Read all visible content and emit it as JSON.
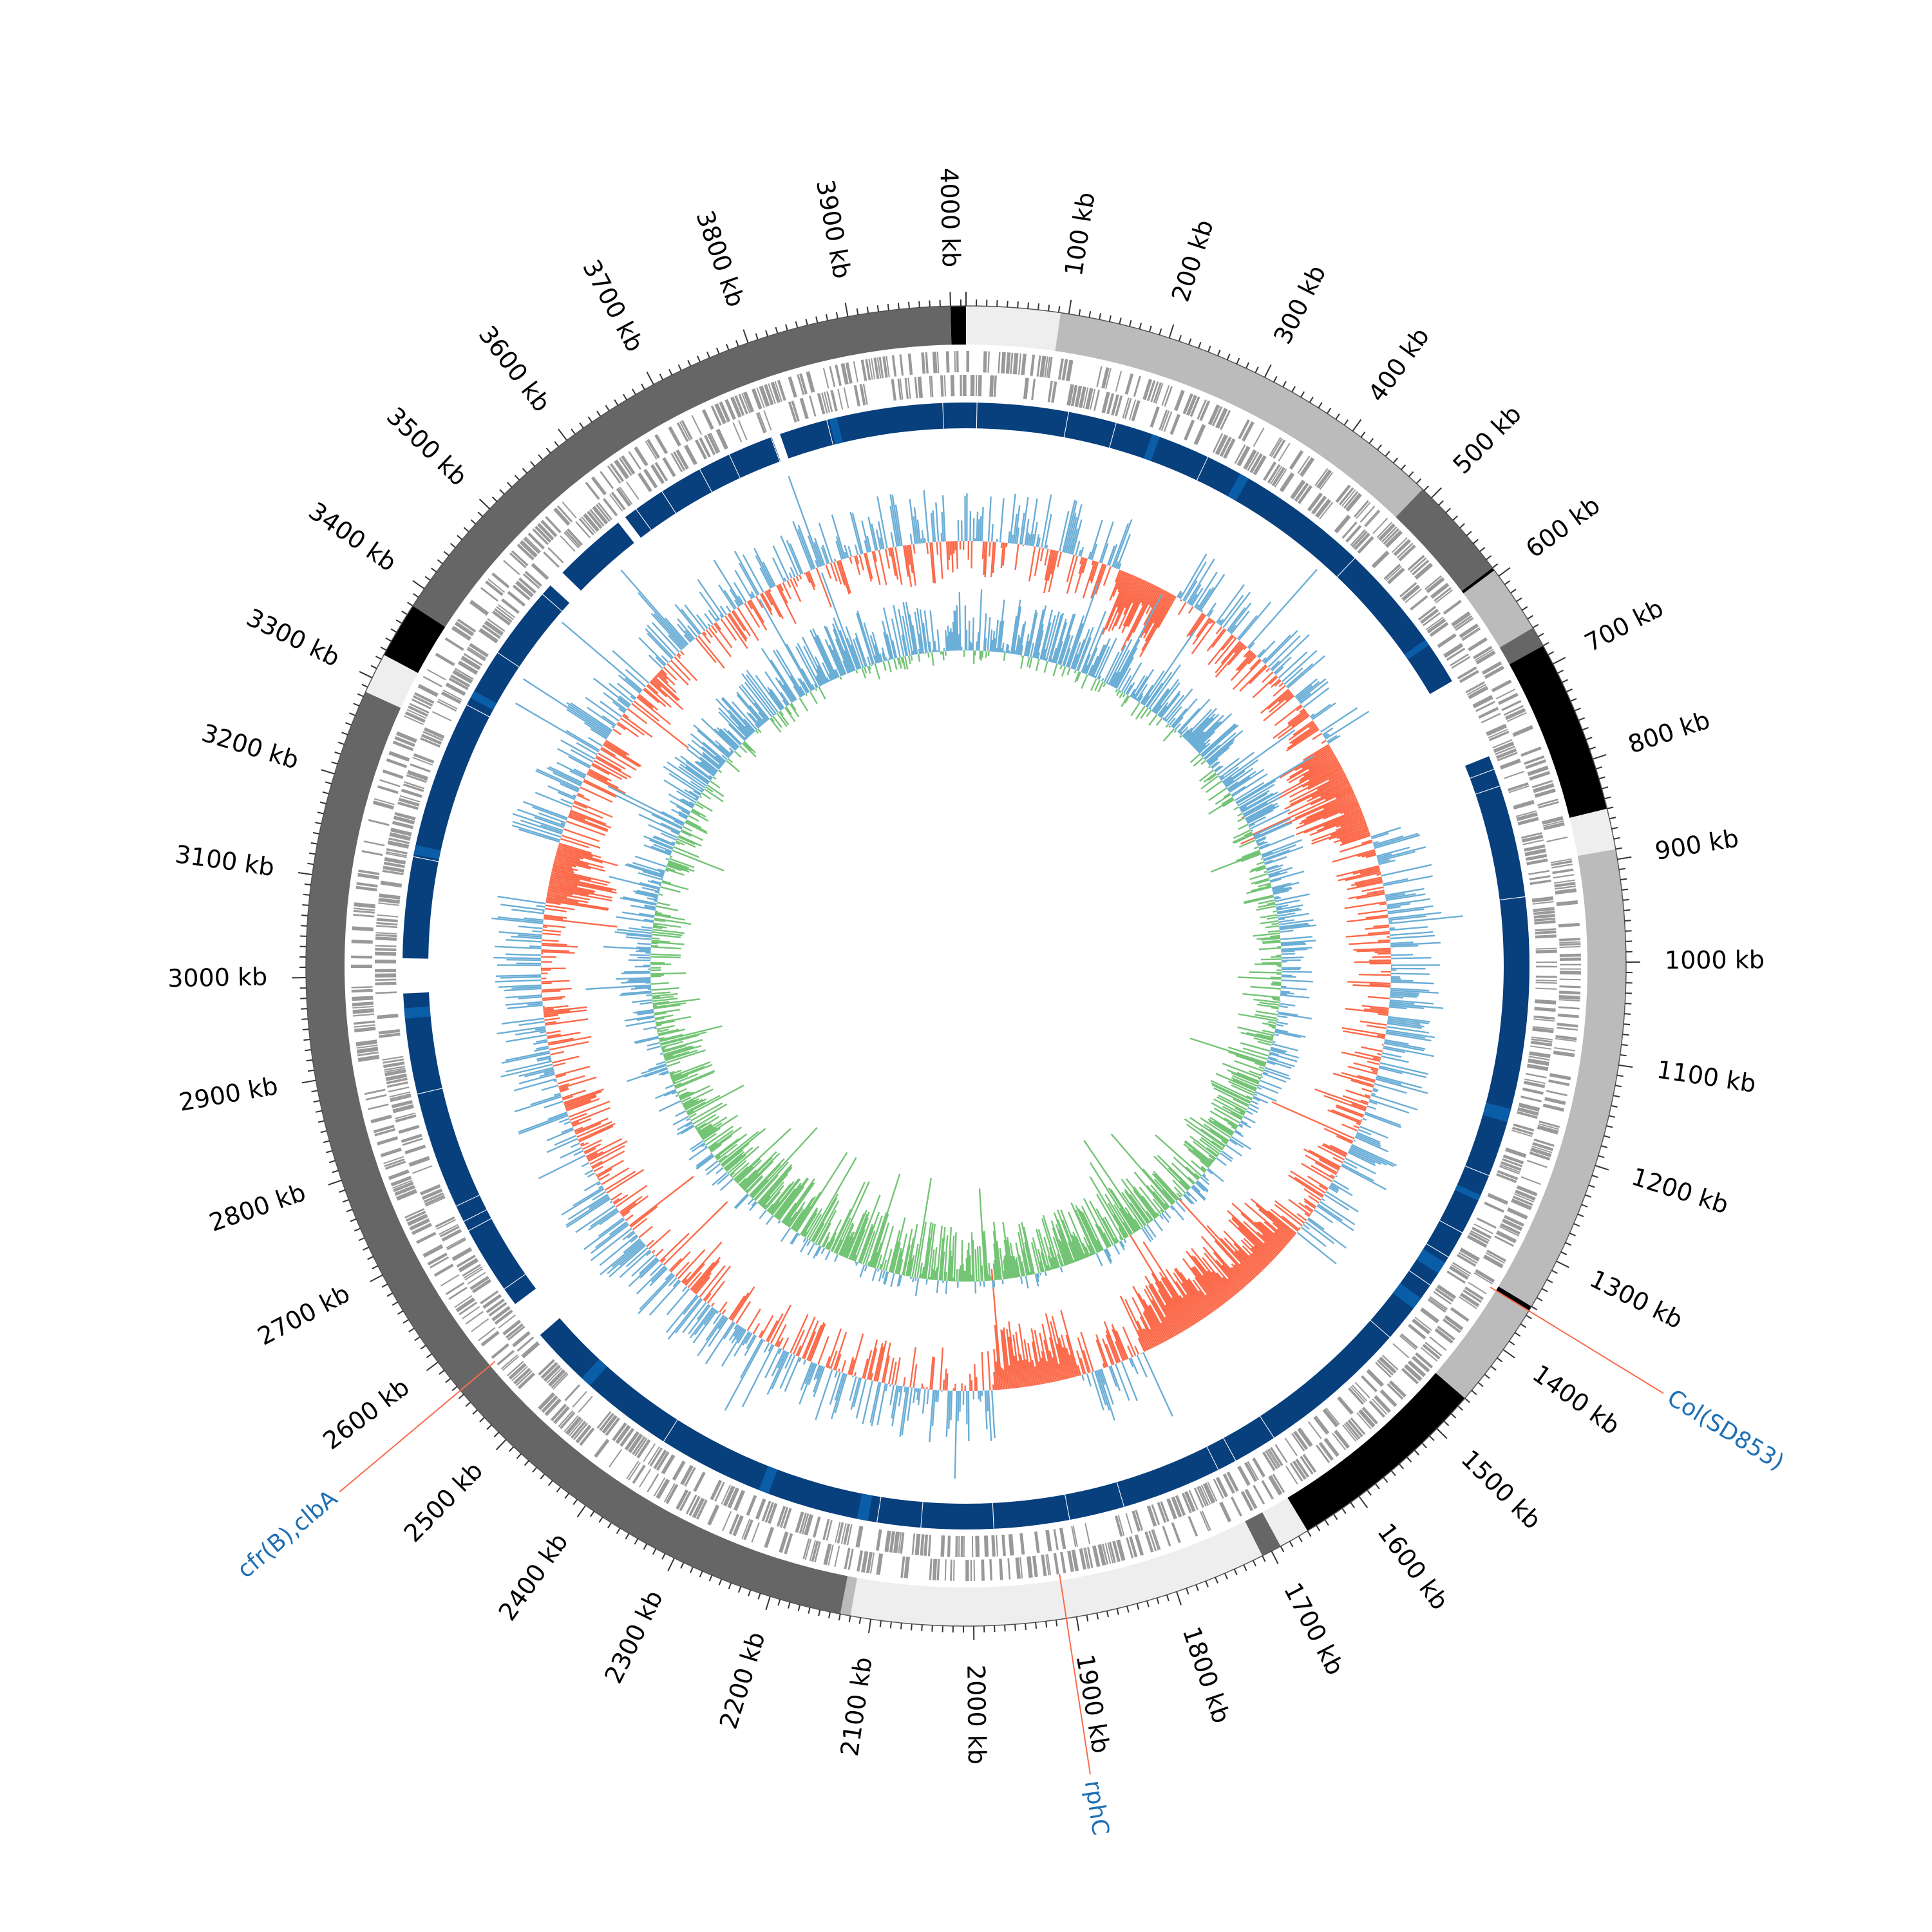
{
  "genome_map": {
    "genome_length_kb": 4015,
    "tick_labels": [
      "100 kb",
      "200 kb",
      "300 kb",
      "400 kb",
      "500 kb",
      "600 kb",
      "700 kb",
      "800 kb",
      "900 kb",
      "1000 kb",
      "1100 kb",
      "1200 kb",
      "1300 kb",
      "1400 kb",
      "1500 kb",
      "1600 kb",
      "1700 kb",
      "1800 kb",
      "1900 kb",
      "2000 kb",
      "2100 kb",
      "2200 kb",
      "2300 kb",
      "2400 kb",
      "2500 kb",
      "2600 kb",
      "2700 kb",
      "2800 kb",
      "2900 kb",
      "3000 kb",
      "3100 kb",
      "3200 kb",
      "3300 kb",
      "3400 kb",
      "3500 kb",
      "3600 kb",
      "3700 kb",
      "3800 kb",
      "3900 kb",
      "4000 kb"
    ],
    "contig_segments": [
      {
        "start": 4000,
        "end": 4015,
        "color": "#000000"
      },
      {
        "start": 0,
        "end": 92,
        "color": "#eeeeee"
      },
      {
        "start": 92,
        "end": 488,
        "color": "#bbbbbb"
      },
      {
        "start": 488,
        "end": 590,
        "color": "#666666"
      },
      {
        "start": 590,
        "end": 593,
        "color": "#000000"
      },
      {
        "start": 593,
        "end": 660,
        "color": "#bbbbbb"
      },
      {
        "start": 660,
        "end": 680,
        "color": "#666666"
      },
      {
        "start": 680,
        "end": 850,
        "color": "#000000"
      },
      {
        "start": 850,
        "end": 890,
        "color": "#eeeeee"
      },
      {
        "start": 890,
        "end": 1350,
        "color": "#bbbbbb"
      },
      {
        "start": 1350,
        "end": 1355,
        "color": "#000000"
      },
      {
        "start": 1355,
        "end": 1460,
        "color": "#bbbbbb"
      },
      {
        "start": 1460,
        "end": 1660,
        "color": "#000000"
      },
      {
        "start": 1660,
        "end": 1690,
        "color": "#eeeeee"
      },
      {
        "start": 1690,
        "end": 1710,
        "color": "#666666"
      },
      {
        "start": 1710,
        "end": 2120,
        "color": "#eeeeee"
      },
      {
        "start": 2120,
        "end": 2130,
        "color": "#bbbbbb"
      },
      {
        "start": 2130,
        "end": 3285,
        "color": "#666666"
      },
      {
        "start": 3285,
        "end": 3325,
        "color": "#eeeeee"
      },
      {
        "start": 3325,
        "end": 3380,
        "color": "#000000"
      },
      {
        "start": 3380,
        "end": 4000,
        "color": "#666666"
      }
    ],
    "blast_gaps": [
      {
        "start": 665,
        "end": 760
      },
      {
        "start": 2980,
        "end": 3020
      },
      {
        "start": 3485,
        "end": 3505
      },
      {
        "start": 3590,
        "end": 3600
      },
      {
        "start": 3790,
        "end": 3800
      },
      {
        "start": 2555,
        "end": 2600
      }
    ],
    "gene_labels": [
      {
        "text": "Col(SD853)",
        "position_kb": 1355,
        "color": "#1f6fb4"
      },
      {
        "text": "rphC",
        "position_kb": 1910,
        "color": "#1f6fb4"
      },
      {
        "text": "cfr(B),clbA",
        "position_kb": 2565,
        "color": "#1f6fb4"
      }
    ],
    "colors": {
      "cds": "#999999",
      "blast_primary": "#083f7d",
      "blast_secondary": "#0a5ea8",
      "gc_content_high": "#6baed6",
      "gc_content_low": "#fb6a4a",
      "gc_skew_positive": "#6baed6",
      "gc_skew_negative": "#74c476",
      "annotation_line": "#fb6a4a"
    }
  }
}
